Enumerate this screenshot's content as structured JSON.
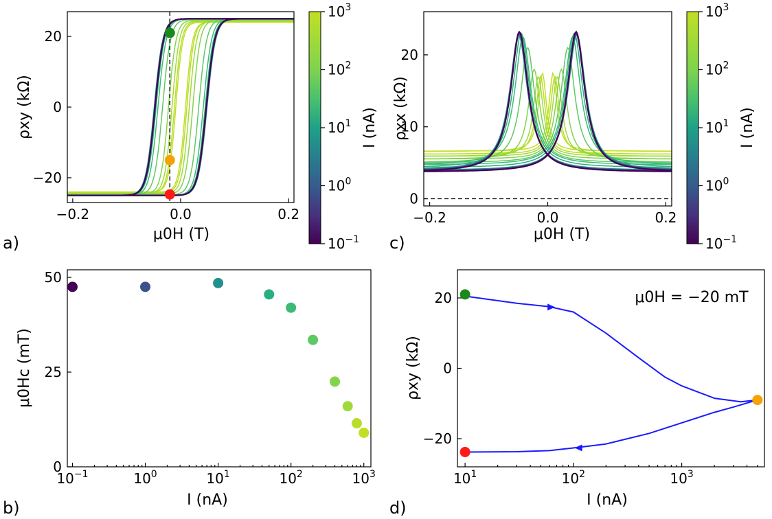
{
  "chart_data": [
    {
      "panel": "a)",
      "type": "line",
      "xlabel": "μ0H (T)",
      "ylabel": "ρxy (kΩ)",
      "xlim": [
        -0.21,
        0.21
      ],
      "ylim": [
        -27,
        27
      ],
      "xticks": [
        "−0.2",
        "0.0",
        "0.2"
      ],
      "yticks": [
        "−20",
        "0",
        "20"
      ],
      "marker_field_T": -0.02,
      "markers": [
        {
          "name": "green",
          "x": -0.02,
          "y": 21,
          "color": "#1a8a1a"
        },
        {
          "name": "orange",
          "x": -0.02,
          "y": -15,
          "color": "#f5a300"
        },
        {
          "name": "red",
          "x": -0.02,
          "y": -24.7,
          "color": "#ff1a1a"
        }
      ],
      "series": [
        {
          "current_nA": 0.1,
          "Hc_mT": 47.5,
          "sat_kOhm": 25,
          "color": "#440154"
        },
        {
          "current_nA": 1,
          "Hc_mT": 47.5,
          "sat_kOhm": 25,
          "color": "#3b528b"
        },
        {
          "current_nA": 10,
          "Hc_mT": 48.5,
          "sat_kOhm": 25,
          "color": "#21908c"
        },
        {
          "current_nA": 50,
          "Hc_mT": 45.5,
          "sat_kOhm": 25,
          "color": "#29af7f"
        },
        {
          "current_nA": 100,
          "Hc_mT": 42,
          "sat_kOhm": 25,
          "color": "#3bbb75"
        },
        {
          "current_nA": 200,
          "Hc_mT": 33.5,
          "sat_kOhm": 24.8,
          "color": "#5ec962"
        },
        {
          "current_nA": 400,
          "Hc_mT": 22.5,
          "sat_kOhm": 24.6,
          "color": "#84d44b"
        },
        {
          "current_nA": 600,
          "Hc_mT": 16,
          "sat_kOhm": 24.4,
          "color": "#a0da39"
        },
        {
          "current_nA": 800,
          "Hc_mT": 11.5,
          "sat_kOhm": 24.2,
          "color": "#b8de29"
        },
        {
          "current_nA": 1000,
          "Hc_mT": 9,
          "sat_kOhm": 24,
          "color": "#c2df23"
        }
      ],
      "colorbar": {
        "label": "I (nA)",
        "scale": "log",
        "ticks": [
          "10",
          "10",
          "10",
          "10",
          "10"
        ],
        "exponents": [
          "-1",
          "0",
          "1",
          "2",
          "3"
        ]
      }
    },
    {
      "panel": "c)",
      "type": "line",
      "xlabel": "μ0H (T)",
      "ylabel": "ρxx (kΩ)",
      "xlim": [
        -0.21,
        0.21
      ],
      "ylim": [
        -1,
        26
      ],
      "xticks": [
        "−0.2",
        "0.0",
        "0.2"
      ],
      "yticks": [
        "0",
        "10",
        "20"
      ],
      "zero_line": 0,
      "series": [
        {
          "current_nA": 0.1,
          "peak_T": 0.048,
          "peak_kOhm": 23.2,
          "baseline_kOhm": 3.7,
          "color": "#440154"
        },
        {
          "current_nA": 1,
          "peak_T": 0.048,
          "peak_kOhm": 23.0,
          "baseline_kOhm": 3.8,
          "color": "#3b528b"
        },
        {
          "current_nA": 10,
          "peak_T": 0.049,
          "peak_kOhm": 22.8,
          "baseline_kOhm": 3.9,
          "color": "#21908c"
        },
        {
          "current_nA": 50,
          "peak_T": 0.045,
          "peak_kOhm": 23.0,
          "baseline_kOhm": 4.3,
          "color": "#29af7f"
        },
        {
          "current_nA": 100,
          "peak_T": 0.042,
          "peak_kOhm": 22.5,
          "baseline_kOhm": 4.7,
          "color": "#3bbb75"
        },
        {
          "current_nA": 200,
          "peak_T": 0.034,
          "peak_kOhm": 21.0,
          "baseline_kOhm": 5.0,
          "color": "#5ec962"
        },
        {
          "current_nA": 400,
          "peak_T": 0.023,
          "peak_kOhm": 18.0,
          "baseline_kOhm": 5.5,
          "color": "#84d44b"
        },
        {
          "current_nA": 600,
          "peak_T": 0.016,
          "peak_kOhm": 17.0,
          "baseline_kOhm": 5.9,
          "color": "#a0da39"
        },
        {
          "current_nA": 800,
          "peak_T": 0.012,
          "peak_kOhm": 17.0,
          "baseline_kOhm": 6.2,
          "color": "#b8de29"
        },
        {
          "current_nA": 1000,
          "peak_T": 0.009,
          "peak_kOhm": 17.5,
          "baseline_kOhm": 6.6,
          "color": "#c2df23"
        }
      ],
      "colorbar": {
        "label": "I (nA)",
        "scale": "log",
        "ticks": [
          "10",
          "10",
          "10",
          "10",
          "10"
        ],
        "exponents": [
          "-1",
          "0",
          "1",
          "2",
          "3"
        ]
      }
    },
    {
      "panel": "b)",
      "type": "scatter",
      "xlabel": "I (nA)",
      "ylabel": "μ0Hc (mT)",
      "xscale": "log",
      "xlim": [
        0.085,
        1250
      ],
      "ylim": [
        0,
        52
      ],
      "xticks": [
        "10",
        "10",
        "10",
        "10",
        "10"
      ],
      "xtick_exponents": [
        "-1",
        "0",
        "1",
        "2",
        "3"
      ],
      "yticks": [
        "0",
        "25",
        "50"
      ],
      "points": [
        {
          "x": 0.1,
          "y": 47.5,
          "color": "#440154"
        },
        {
          "x": 1,
          "y": 47.5,
          "color": "#3b528b"
        },
        {
          "x": 10,
          "y": 48.5,
          "color": "#21908c"
        },
        {
          "x": 50,
          "y": 45.5,
          "color": "#29af7f"
        },
        {
          "x": 100,
          "y": 42,
          "color": "#3bbb75"
        },
        {
          "x": 200,
          "y": 33.5,
          "color": "#5ec962"
        },
        {
          "x": 400,
          "y": 22.5,
          "color": "#84d44b"
        },
        {
          "x": 600,
          "y": 16,
          "color": "#a0da39"
        },
        {
          "x": 800,
          "y": 11.5,
          "color": "#b8de29"
        },
        {
          "x": 1000,
          "y": 9,
          "color": "#c2df23"
        }
      ]
    },
    {
      "panel": "d)",
      "type": "line",
      "xlabel": "I (nA)",
      "ylabel": "ρxy (kΩ)",
      "annotation": "μ0H = −20 mT",
      "xscale": "log",
      "xlim": [
        8.5,
        5800
      ],
      "ylim": [
        -28,
        28
      ],
      "xticks": [
        "10",
        "10",
        "10"
      ],
      "xtick_exponents": [
        "1",
        "2",
        "3"
      ],
      "yticks": [
        "−20",
        "0",
        "20"
      ],
      "line_color": "#1a1aff",
      "series": [
        {
          "name": "increasing",
          "x": [
            10,
            30,
            60,
            100,
            200,
            400,
            700,
            1000,
            2000,
            3500,
            5000
          ],
          "y": [
            20.5,
            18.5,
            17.5,
            16,
            10,
            3,
            -2.5,
            -5,
            -8.5,
            -9.5,
            -9
          ]
        },
        {
          "name": "decreasing",
          "x": [
            5000,
            3000,
            2000,
            1000,
            500,
            200,
            110,
            60,
            30,
            10
          ],
          "y": [
            -9,
            -11,
            -12.5,
            -15.5,
            -18.5,
            -21.5,
            -22.5,
            -23.4,
            -23.7,
            -23.8
          ]
        }
      ],
      "markers": [
        {
          "name": "green",
          "x": 10,
          "y": 21,
          "color": "#1a8a1a"
        },
        {
          "name": "red",
          "x": 10,
          "y": -23.8,
          "color": "#ff1a1a"
        },
        {
          "name": "orange",
          "x": 5000,
          "y": -9,
          "color": "#f5a300"
        }
      ]
    }
  ]
}
